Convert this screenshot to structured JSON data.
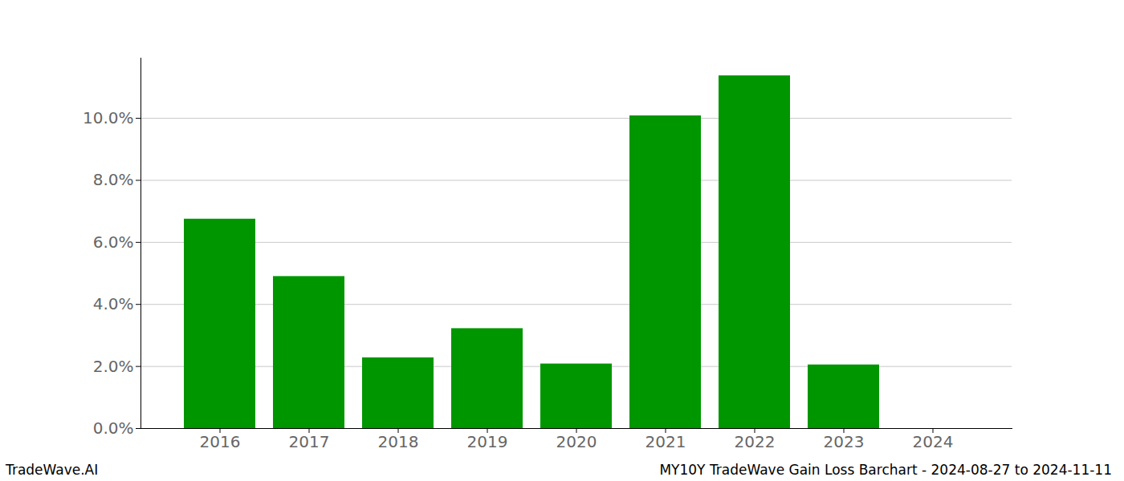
{
  "chart_data": {
    "type": "bar",
    "categories": [
      "2016",
      "2017",
      "2018",
      "2019",
      "2020",
      "2021",
      "2022",
      "2023",
      "2024"
    ],
    "values": [
      6.75,
      4.9,
      2.28,
      3.22,
      2.08,
      10.08,
      11.37,
      2.05,
      0
    ],
    "color": "#009600",
    "ylim": [
      0,
      11.94
    ],
    "yticks": [
      {
        "value": 0,
        "label": "0.0%"
      },
      {
        "value": 2,
        "label": "2.0%"
      },
      {
        "value": 4,
        "label": "4.0%"
      },
      {
        "value": 6,
        "label": "6.0%"
      },
      {
        "value": 8,
        "label": "8.0%"
      },
      {
        "value": 10,
        "label": "10.0%"
      }
    ],
    "grid": true,
    "annotations": [
      "TradeWave.AI",
      "MY10Y TradeWave Gain Loss Barchart - 2024-08-27 to 2024-11-11"
    ]
  }
}
